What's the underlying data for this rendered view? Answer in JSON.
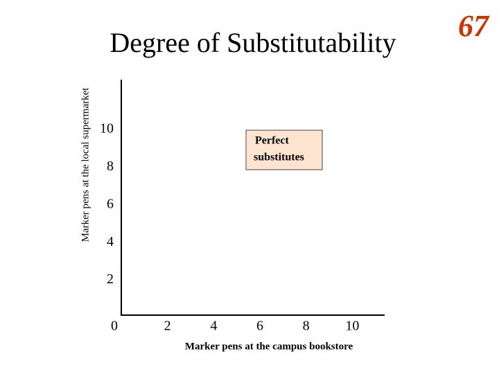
{
  "chart_data": {
    "type": "line",
    "title": "Degree of Substitutability",
    "x_label": "Marker pens  at the campus bookstore",
    "y_label": "Marker pens at the local supermarket",
    "annotation": [
      "Perfect",
      "substitutes"
    ],
    "series": [],
    "xlim": [
      0,
      11.4
    ],
    "ylim": [
      0,
      12.5
    ],
    "xticks": [
      0,
      2,
      4,
      6,
      8,
      10
    ],
    "yticks": [
      2,
      4,
      6,
      8,
      10
    ],
    "grid": false
  },
  "slide_number": "67"
}
